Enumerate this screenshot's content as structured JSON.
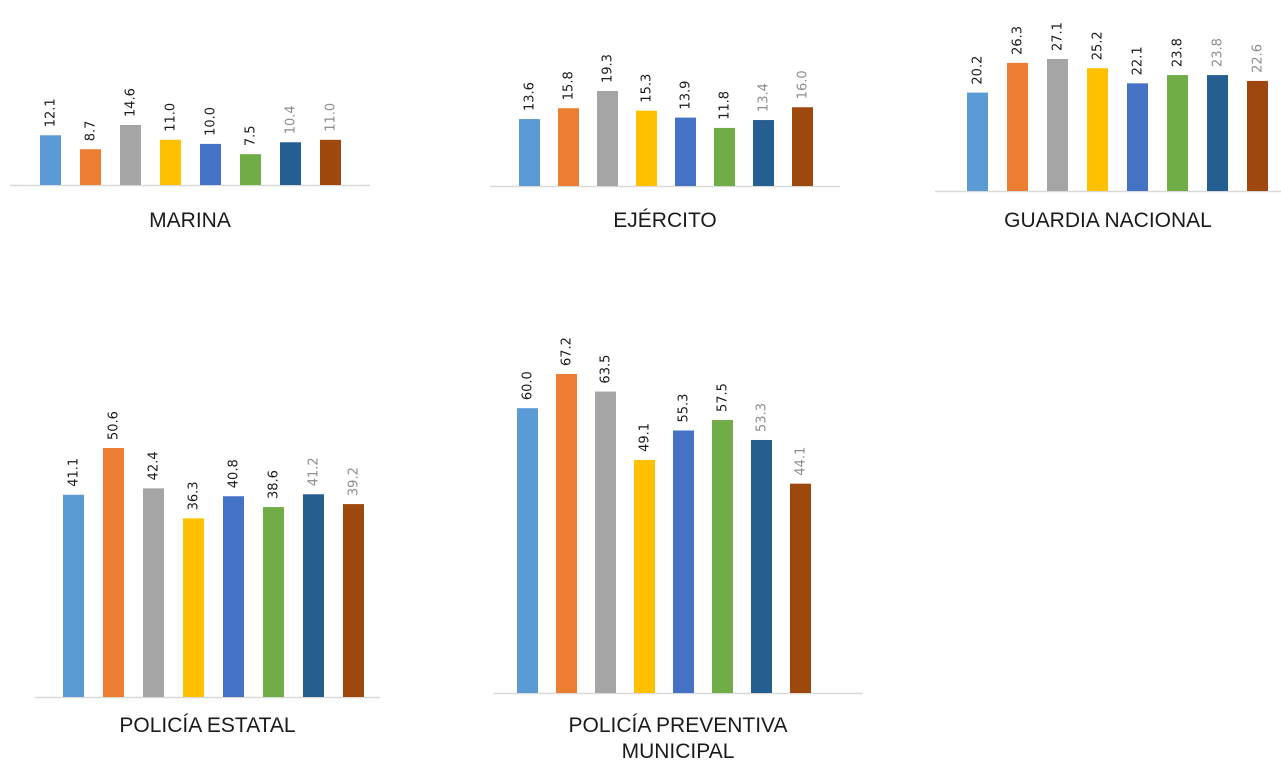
{
  "colors": {
    "series": [
      "#5b9bd5",
      "#ed7d31",
      "#a5a5a5",
      "#ffc000",
      "#4472c4",
      "#70ad47",
      "#255e91",
      "#9e480e"
    ],
    "label_dark": "#1a1a1a",
    "label_faded": "#8c8c8c",
    "axis": "#d9d9d9"
  },
  "chart_data": [
    {
      "type": "bar",
      "title": "MARINA",
      "values": [
        12.1,
        8.7,
        14.6,
        11.0,
        10.0,
        7.5,
        10.4,
        11.0
      ],
      "labels": [
        "12.1",
        "8.7",
        "14.6",
        "11.0",
        "10.0",
        "7.5",
        "10.4",
        "11.0"
      ],
      "faded_labels": [
        6,
        7
      ],
      "legend": false,
      "grid": false,
      "ylim": [
        0,
        14.6
      ]
    },
    {
      "type": "bar",
      "title": "EJÉRCITO",
      "values": [
        13.6,
        15.8,
        19.3,
        15.3,
        13.9,
        11.8,
        13.4,
        16.0
      ],
      "labels": [
        "13.6",
        "15.8",
        "19.3",
        "15.3",
        "13.9",
        "11.8",
        "13.4",
        "16.0"
      ],
      "faded_labels": [
        6,
        7
      ],
      "legend": false,
      "grid": false,
      "ylim": [
        0,
        19.3
      ]
    },
    {
      "type": "bar",
      "title": "GUARDIA NACIONAL",
      "values": [
        20.2,
        26.3,
        27.1,
        25.2,
        22.1,
        23.8,
        23.8,
        22.6
      ],
      "labels": [
        "20.2",
        "26.3",
        "27.1",
        "25.2",
        "22.1",
        "23.8",
        "23.8",
        "22.6"
      ],
      "faded_labels": [
        6,
        7
      ],
      "legend": false,
      "grid": false,
      "ylim": [
        0,
        27.1
      ]
    },
    {
      "type": "bar",
      "title": "POLICÍA ESTATAL",
      "values": [
        41.1,
        50.6,
        42.4,
        36.3,
        40.8,
        38.6,
        41.2,
        39.2
      ],
      "labels": [
        "41.1",
        "50.6",
        "42.4",
        "36.3",
        "40.8",
        "38.6",
        "41.2",
        "39.2"
      ],
      "faded_labels": [
        6,
        7
      ],
      "legend": false,
      "grid": false,
      "ylim": [
        0,
        50.6
      ]
    },
    {
      "type": "bar",
      "title": "POLICÍA PREVENTIVA\nMUNICIPAL",
      "values": [
        60.0,
        67.2,
        63.5,
        49.1,
        55.3,
        57.5,
        53.3,
        44.1
      ],
      "labels": [
        "60.0",
        "67.2",
        "63.5",
        "49.1",
        "55.3",
        "57.5",
        "53.3",
        "44.1"
      ],
      "faded_labels": [
        6,
        7
      ],
      "legend": false,
      "grid": false,
      "ylim": [
        0,
        67.2
      ]
    }
  ]
}
